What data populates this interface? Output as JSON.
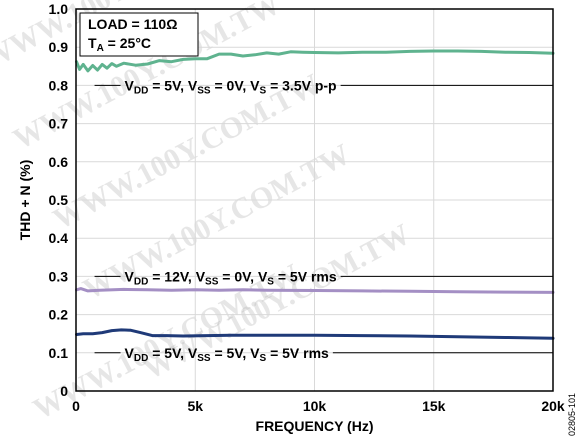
{
  "chart_data": {
    "type": "line",
    "xlabel": "FREQUENCY (Hz)",
    "ylabel": "THD + N (%)",
    "xlim": [
      0,
      20000
    ],
    "ylim": [
      0,
      1.0
    ],
    "grid": true,
    "x_ticks": [
      {
        "value": 0,
        "label": "0"
      },
      {
        "value": 5000,
        "label": "5k"
      },
      {
        "value": 10000,
        "label": "10k"
      },
      {
        "value": 15000,
        "label": "15k"
      },
      {
        "value": 20000,
        "label": "20k"
      }
    ],
    "y_ticks": [
      {
        "value": 0,
        "label": "0"
      },
      {
        "value": 0.1,
        "label": "0.1"
      },
      {
        "value": 0.2,
        "label": "0.2"
      },
      {
        "value": 0.3,
        "label": "0.3"
      },
      {
        "value": 0.4,
        "label": "0.4"
      },
      {
        "value": 0.5,
        "label": "0.5"
      },
      {
        "value": 0.6,
        "label": "0.6"
      },
      {
        "value": 0.7,
        "label": "0.7"
      },
      {
        "value": 0.8,
        "label": "0.8"
      },
      {
        "value": 0.9,
        "label": "0.9"
      },
      {
        "value": 1.0,
        "label": "1.0"
      }
    ],
    "conditions": {
      "load_main": "LOAD = 110Ω",
      "temp_main": "T",
      "temp_sub": "A",
      "temp_rest": " = 25°C"
    },
    "series": [
      {
        "color": "#5fb38f",
        "label_parts": [
          {
            "t": "V"
          },
          {
            "t": "DD",
            "sub": true
          },
          {
            "t": " = 5V, V"
          },
          {
            "t": "SS",
            "sub": true
          },
          {
            "t": " = 0V, V"
          },
          {
            "t": "S",
            "sub": true
          },
          {
            "t": " = 3.5V p-p"
          }
        ],
        "label_at": {
          "x": 1700,
          "y": 0.8
        },
        "x": [
          20,
          150,
          300,
          500,
          700,
          900,
          1100,
          1300,
          1500,
          1700,
          2000,
          2500,
          3000,
          3500,
          4000,
          4500,
          5000,
          5500,
          6000,
          6500,
          7000,
          7500,
          8000,
          8500,
          9000,
          9500,
          10000,
          11000,
          12000,
          13000,
          14000,
          15000,
          16000,
          17000,
          18000,
          19000,
          20000
        ],
        "y": [
          0.862,
          0.842,
          0.855,
          0.838,
          0.852,
          0.84,
          0.855,
          0.845,
          0.857,
          0.85,
          0.858,
          0.853,
          0.856,
          0.865,
          0.862,
          0.868,
          0.87,
          0.87,
          0.882,
          0.882,
          0.877,
          0.88,
          0.885,
          0.882,
          0.888,
          0.887,
          0.886,
          0.885,
          0.887,
          0.887,
          0.889,
          0.89,
          0.89,
          0.889,
          0.887,
          0.886,
          0.884
        ]
      },
      {
        "color": "#a48fc4",
        "label_parts": [
          {
            "t": "V"
          },
          {
            "t": "DD",
            "sub": true
          },
          {
            "t": " = 12V, V"
          },
          {
            "t": "SS",
            "sub": true
          },
          {
            "t": " = 0V, V"
          },
          {
            "t": "S",
            "sub": true
          },
          {
            "t": " = 5V rms"
          }
        ],
        "label_at": {
          "x": 1700,
          "y": 0.3
        },
        "x": [
          20,
          200,
          500,
          1000,
          2000,
          3000,
          4000,
          5000,
          6000,
          7000,
          8000,
          10000,
          12000,
          14000,
          16000,
          18000,
          20000
        ],
        "y": [
          0.265,
          0.268,
          0.262,
          0.264,
          0.266,
          0.265,
          0.264,
          0.265,
          0.264,
          0.265,
          0.264,
          0.263,
          0.262,
          0.261,
          0.26,
          0.259,
          0.258
        ]
      },
      {
        "color": "#1f3a78",
        "label_parts": [
          {
            "t": "V"
          },
          {
            "t": "DD",
            "sub": true
          },
          {
            "t": " = 5V, V"
          },
          {
            "t": "SS",
            "sub": true
          },
          {
            "t": " = 5V, V"
          },
          {
            "t": "S",
            "sub": true
          },
          {
            "t": " = 5V rms"
          }
        ],
        "label_at": {
          "x": 1700,
          "y": 0.1
        },
        "x": [
          20,
          300,
          700,
          1100,
          1500,
          1900,
          2300,
          2700,
          3200,
          3800,
          4500,
          5500,
          6500,
          8000,
          10000,
          12000,
          14000,
          16000,
          18000,
          20000
        ],
        "y": [
          0.148,
          0.15,
          0.15,
          0.153,
          0.158,
          0.16,
          0.159,
          0.153,
          0.145,
          0.145,
          0.144,
          0.145,
          0.146,
          0.146,
          0.146,
          0.145,
          0.144,
          0.142,
          0.14,
          0.138
        ]
      }
    ]
  },
  "watermark": "WWW.100Y.COM.TW",
  "figure_id": "02805-101"
}
